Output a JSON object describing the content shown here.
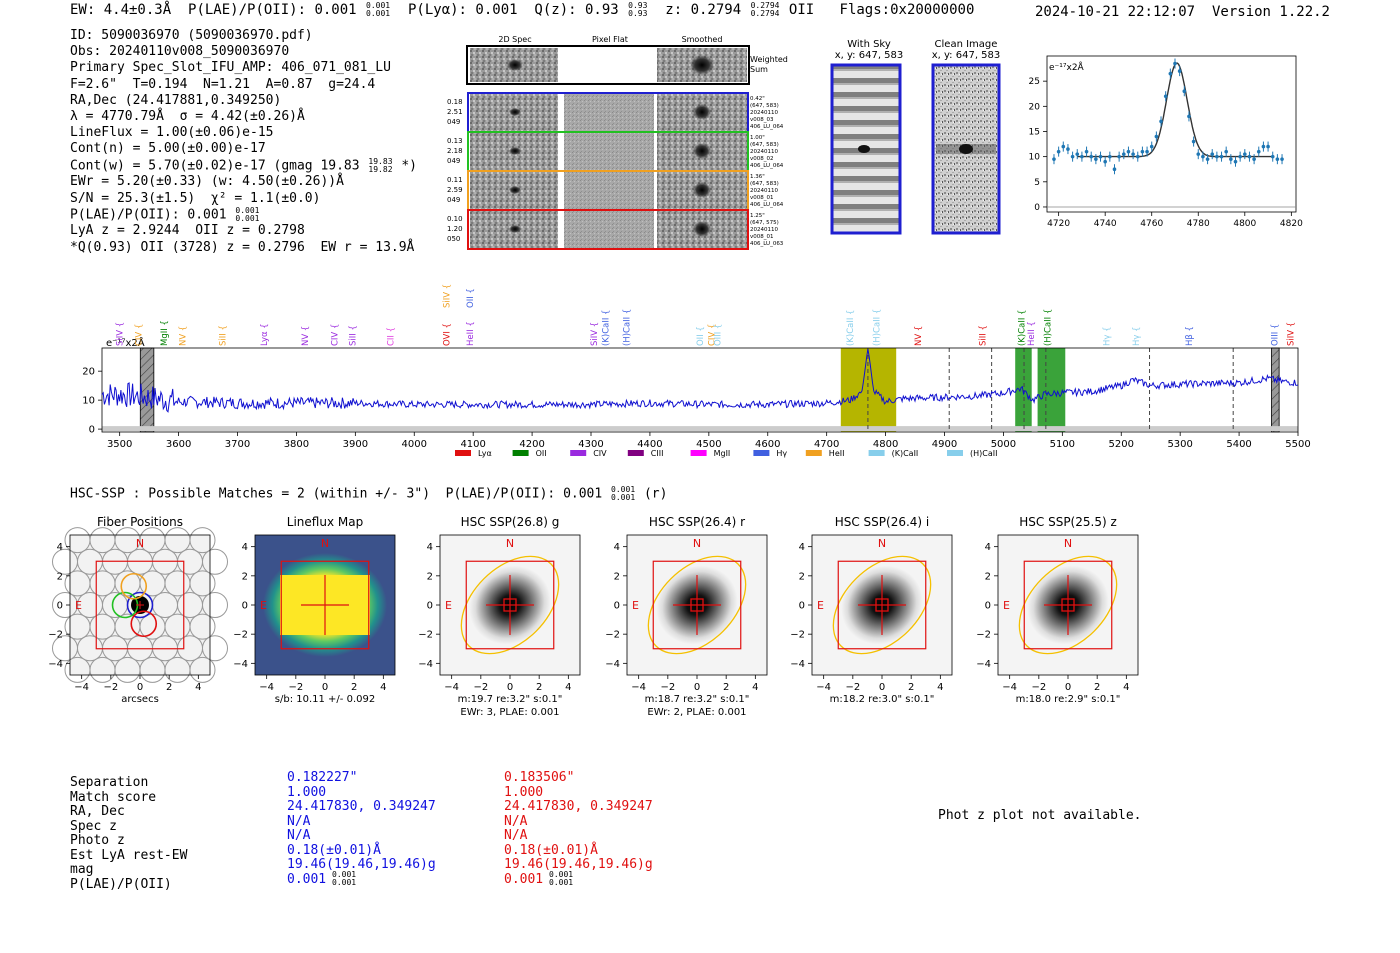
{
  "header": {
    "ew": "EW: 4.4±0.3Å",
    "plae_label": "P(LAE)/P(OII): 0.001",
    "plae_sup": "0.001",
    "plae_sub": "0.001",
    "plya": "P(Lyα): 0.001",
    "qz_label": "Q(z): 0.93",
    "qz_sup": "0.93",
    "qz_sub": "0.93",
    "z_label": "z: 0.2794",
    "z_sup": "0.2794",
    "z_sub": "0.2794",
    "z_line": "OII",
    "flags": "Flags:0x20000000",
    "timestamp": "2024-10-21 22:12:07",
    "version": "Version 1.22.2"
  },
  "info": {
    "id": "ID: 5090036970 (5090036970.pdf)",
    "obs": "Obs: 20240110v008_5090036970",
    "primary": "Primary Spec_Slot_IFU_AMP: 406_071_081_LU",
    "params": "F=2.6\"  T=0.194  N=1.21  A=0.87  g=24.4",
    "radec": "RA,Dec (24.417881,0.349250)",
    "lambda": "λ = 4770.79Å  σ = 4.42(±0.26)Å",
    "lineflux": "LineFlux = 1.00(±0.06)e-15",
    "contn": "Cont(n) = 5.00(±0.00)e-17",
    "contw": "Cont(w) = 5.70(±0.02)e-17 (gmag 19.83",
    "contw_sup": "19.83",
    "contw_sub": "19.82",
    "contw_end": "*)",
    "ewr": "EWr = 5.20(±0.33) (w: 4.50(±0.26))Å",
    "sn": "S/N = 25.3(±1.5)  χ² = 1.1(±0.0)",
    "plae": "P(LAE)/P(OII): 0.001",
    "plae_sup": "0.001",
    "plae_sub": "0.001",
    "lya": "LyA z = 2.9244  OII z = 0.2798",
    "q": "*Q(0.93) OII (3728) z = 0.2796  EW r = 13.9Å"
  },
  "spec_panel": {
    "col_headers": [
      "2D Spec",
      "Pixel Flat",
      "Smoothed"
    ],
    "weighted_sum": [
      "Weighted",
      "Sum"
    ],
    "rows": [
      {
        "left": [
          "0.18",
          "2.51",
          "049"
        ],
        "right": [
          "0.42\"",
          "(647, 583)",
          "20240110",
          "v008_03",
          "406_LU_064"
        ],
        "color": "#1f1fd0"
      },
      {
        "left": [
          "0.13",
          "2.18",
          "049"
        ],
        "right": [
          "1.00\"",
          "(647, 583)",
          "20240110",
          "v008_02",
          "406_LU_064"
        ],
        "color": "#22c022"
      },
      {
        "left": [
          "0.11",
          "2.59",
          "049"
        ],
        "right": [
          "1.36\"",
          "(647, 583)",
          "20240110",
          "v008_01",
          "406_LU_064"
        ],
        "color": "#f0a020"
      },
      {
        "left": [
          "0.10",
          "1.20",
          "050"
        ],
        "right": [
          "1.25\"",
          "(647, 575)",
          "20240110",
          "v008_01",
          "406_LU_063"
        ],
        "color": "#e01010"
      }
    ]
  },
  "sky_panels": {
    "with_sky": [
      "With Sky",
      "x, y: 647, 583"
    ],
    "clean": [
      "Clean Image",
      "x, y: 647, 583"
    ]
  },
  "zoom_plot": {
    "ylabel": "e⁻¹⁷x2Å",
    "x_ticks": [
      "4720",
      "4740",
      "4760",
      "4780",
      "4800",
      "4820"
    ],
    "y_ticks": [
      "0",
      "5",
      "10",
      "15",
      "20",
      "25"
    ]
  },
  "full_spec": {
    "ylabel": "e⁻¹⁷x2Å",
    "x_ticks": [
      "3500",
      "3600",
      "3700",
      "3800",
      "3900",
      "4000",
      "4100",
      "4200",
      "4300",
      "4400",
      "4500",
      "4600",
      "4700",
      "4800",
      "4900",
      "5000",
      "5100",
      "5200",
      "5300",
      "5400",
      "5500"
    ],
    "y_ticks": [
      "0",
      "10",
      "20"
    ],
    "line_labels": [
      {
        "t": "SiIV",
        "w": 3505,
        "c": "#9a2adf"
      },
      {
        "t": "CIV",
        "w": 3537,
        "c": "#f0a020"
      },
      {
        "t": "MgII",
        "w": 3580,
        "c": "#008000"
      },
      {
        "t": "NV",
        "w": 3612,
        "c": "#f0a020"
      },
      {
        "t": "SiII",
        "w": 3680,
        "c": "#f0a020"
      },
      {
        "t": "Lyα",
        "w": 3750,
        "c": "#9a2adf"
      },
      {
        "t": "NV",
        "w": 3820,
        "c": "#9a2adf"
      },
      {
        "t": "CIV",
        "w": 3870,
        "c": "#9a2adf"
      },
      {
        "t": "SiII",
        "w": 3900,
        "c": "#9a2adf"
      },
      {
        "t": "CII",
        "w": 3965,
        "c": "#e040e0"
      },
      {
        "t": "OVI",
        "w": 4060,
        "c": "#e01010"
      },
      {
        "t": "HeII",
        "w": 4100,
        "c": "#9a2adf"
      },
      {
        "t": "SiIV",
        "w": 4310,
        "c": "#9a2adf"
      },
      {
        "t": "(K)CaII",
        "w": 4330,
        "c": "#4060e0"
      },
      {
        "t": "(H)CaII",
        "w": 4365,
        "c": "#4060e0"
      },
      {
        "t": "OII",
        "w": 4490,
        "c": "#87ceeb"
      },
      {
        "t": "CIV",
        "w": 4510,
        "c": "#f0a020"
      },
      {
        "t": "OIII",
        "w": 4520,
        "c": "#87ceeb"
      },
      {
        "t": "(K)CaII",
        "w": 4745,
        "c": "#87ceeb"
      },
      {
        "t": "(H)CaII",
        "w": 4790,
        "c": "#87ceeb"
      },
      {
        "t": "NV",
        "w": 4860,
        "c": "#e01010"
      },
      {
        "t": "SiII",
        "w": 4970,
        "c": "#e01010"
      },
      {
        "t": "(K)CaII",
        "w": 5036,
        "c": "#008000"
      },
      {
        "t": "HeII",
        "w": 5052,
        "c": "#9a2adf"
      },
      {
        "t": "(H)CaII",
        "w": 5080,
        "c": "#008000"
      },
      {
        "t": "Hγ",
        "w": 5180,
        "c": "#87ceeb"
      },
      {
        "t": "Hγ",
        "w": 5230,
        "c": "#87ceeb"
      },
      {
        "t": "Hβ",
        "w": 5320,
        "c": "#4060e0"
      },
      {
        "t": "OIII",
        "w": 5465,
        "c": "#4060e0"
      },
      {
        "t": "SiIV",
        "w": 5492,
        "c": "#e01010"
      }
    ],
    "top_labels": [
      {
        "t": "SiIV",
        "w": 4060,
        "c": "#f0a020"
      },
      {
        "t": "OII",
        "w": 4100,
        "c": "#4060e0"
      }
    ],
    "legend": [
      {
        "label": "Lyα",
        "color": "#e01010"
      },
      {
        "label": "OII",
        "color": "#008000"
      },
      {
        "label": "CIV",
        "color": "#9a2adf"
      },
      {
        "label": "CIII",
        "color": "#800080"
      },
      {
        "label": "MgII",
        "color": "#ff00ff"
      },
      {
        "label": "Hγ",
        "color": "#4060e0"
      },
      {
        "label": "HeII",
        "color": "#f0a020"
      },
      {
        "label": "(K)CaII",
        "color": "#87ceeb"
      },
      {
        "label": "(H)CaII",
        "color": "#87ceeb"
      }
    ]
  },
  "hsc": {
    "line_prefix": "HSC-SSP : Possible Matches = 2 (within +/- 3\")  P(LAE)/P(OII): 0.001",
    "line_sup": "0.001",
    "line_sub": "0.001",
    "line_end": "(r)"
  },
  "cutouts": [
    {
      "title": "Fiber Positions",
      "cap1": "arcsecs",
      "cap2": ""
    },
    {
      "title": "Lineflux Map",
      "cap1": "s/b: 10.11 +/- 0.092",
      "cap2": ""
    },
    {
      "title": "HSC SSP(26.8) g",
      "cap1": "m:19.7  re:3.2\"  s:0.1\"",
      "cap2": "EWr: 3, PLAE: 0.001"
    },
    {
      "title": "HSC SSP(26.4) r",
      "cap1": "m:18.7  re:3.2\"  s:0.1\"",
      "cap2": "EWr: 2, PLAE: 0.001"
    },
    {
      "title": "HSC SSP(26.4) i",
      "cap1": "m:18.2  re:3.0\"  s:0.1\"",
      "cap2": ""
    },
    {
      "title": "HSC SSP(25.5) z",
      "cap1": "m:18.0  re:2.9\"  s:0.1\"",
      "cap2": ""
    }
  ],
  "cutout_axis": {
    "ticks": [
      "−4",
      "−2",
      "0",
      "2",
      "4"
    ],
    "north": "N",
    "east": "E"
  },
  "bottom_table": {
    "rows": [
      {
        "label": "Separation",
        "c1": "0.182227\"",
        "c2": "0.183506\""
      },
      {
        "label": "Match score",
        "c1": "1.000",
        "c2": "1.000"
      },
      {
        "label": "RA, Dec",
        "c1": "24.417830, 0.349247",
        "c2": "24.417830, 0.349247"
      },
      {
        "label": "Spec z",
        "c1": "N/A",
        "c2": "N/A"
      },
      {
        "label": "Photo z",
        "c1": "N/A",
        "c2": "N/A"
      },
      {
        "label": "Est LyA rest-EW",
        "c1": "0.18(±0.01)Å",
        "c2": "0.18(±0.01)Å"
      },
      {
        "label": "mag",
        "c1": "19.46(19.46,19.46)g",
        "c2": "19.46(19.46,19.46)g"
      },
      {
        "label": "P(LAE)/P(OII)",
        "c1": "0.001",
        "c2": "0.001"
      }
    ],
    "plae_frac": {
      "sup": "0.001",
      "sub": "0.001"
    }
  },
  "phot_z": "Phot z plot not available.",
  "chart_data": [
    {
      "type": "scatter",
      "title": "",
      "xlabel": "",
      "ylabel": "e-17x2Å",
      "xlim": [
        4715,
        4822
      ],
      "ylim": [
        -1,
        30
      ],
      "x": [
        4718,
        4720,
        4722,
        4724,
        4726,
        4728,
        4730,
        4732,
        4734,
        4736,
        4738,
        4740,
        4742,
        4744,
        4746,
        4748,
        4750,
        4752,
        4754,
        4756,
        4758,
        4760,
        4762,
        4764,
        4766,
        4768,
        4770,
        4772,
        4774,
        4776,
        4778,
        4780,
        4782,
        4784,
        4786,
        4788,
        4790,
        4792,
        4794,
        4796,
        4798,
        4800,
        4802,
        4804,
        4806,
        4808,
        4810,
        4812,
        4814,
        4816
      ],
      "y": [
        9.5,
        11,
        12,
        11.5,
        10,
        10.5,
        10,
        11,
        10,
        9.5,
        10,
        9,
        10,
        7.5,
        10,
        10.5,
        11,
        10.5,
        10,
        11,
        11,
        12,
        14,
        17,
        22,
        26.5,
        28.5,
        27,
        23,
        18,
        13,
        10.5,
        10,
        9.5,
        10.5,
        10,
        10,
        11,
        9.5,
        9,
        10,
        10.5,
        10,
        9.5,
        11,
        12,
        12,
        10,
        9.5,
        9.5
      ],
      "model_center": 4770.8,
      "model_sigma": 4.42,
      "model_amp": 18.6,
      "model_cont": 10.0
    },
    {
      "type": "line",
      "title": "",
      "xlabel": "",
      "ylabel": "e-17x2Å",
      "xlim": [
        3470,
        5500
      ],
      "ylim": [
        -1,
        28
      ],
      "series": [
        {
          "name": "spectrum",
          "anchors_x": [
            3470,
            3500,
            3550,
            3600,
            3700,
            3800,
            3900,
            4000,
            4100,
            4200,
            4300,
            4400,
            4500,
            4600,
            4700,
            4740,
            4760,
            4770,
            4780,
            4800,
            4830,
            4900,
            4960,
            5000,
            5030,
            5050,
            5070,
            5100,
            5150,
            5200,
            5220,
            5250,
            5300,
            5400,
            5450,
            5470,
            5500
          ],
          "anchors_y": [
            12,
            12,
            11,
            9.5,
            9,
            9,
            9,
            8.5,
            8.5,
            8.5,
            8.5,
            9,
            8.5,
            8.5,
            9,
            10,
            13,
            28,
            13,
            9.5,
            10.5,
            11,
            11.5,
            12.5,
            14,
            10,
            12,
            12.5,
            13,
            15,
            17,
            15,
            15.5,
            16,
            17.5,
            16.5,
            16
          ]
        }
      ],
      "shaded_regions": [
        {
          "x0": 4724,
          "x1": 4818,
          "color": "#b5b500"
        },
        {
          "x0": 5020,
          "x1": 5048,
          "color": "#3aa33a"
        },
        {
          "x0": 5058,
          "x1": 5105,
          "color": "#3aa33a"
        }
      ],
      "hatched_regions": [
        {
          "x0": 3535,
          "x1": 3558
        },
        {
          "x0": 5455,
          "x1": 5468
        }
      ],
      "dashed_lines": [
        4770,
        4908,
        4980,
        5035,
        5072,
        5248,
        5390
      ]
    }
  ]
}
